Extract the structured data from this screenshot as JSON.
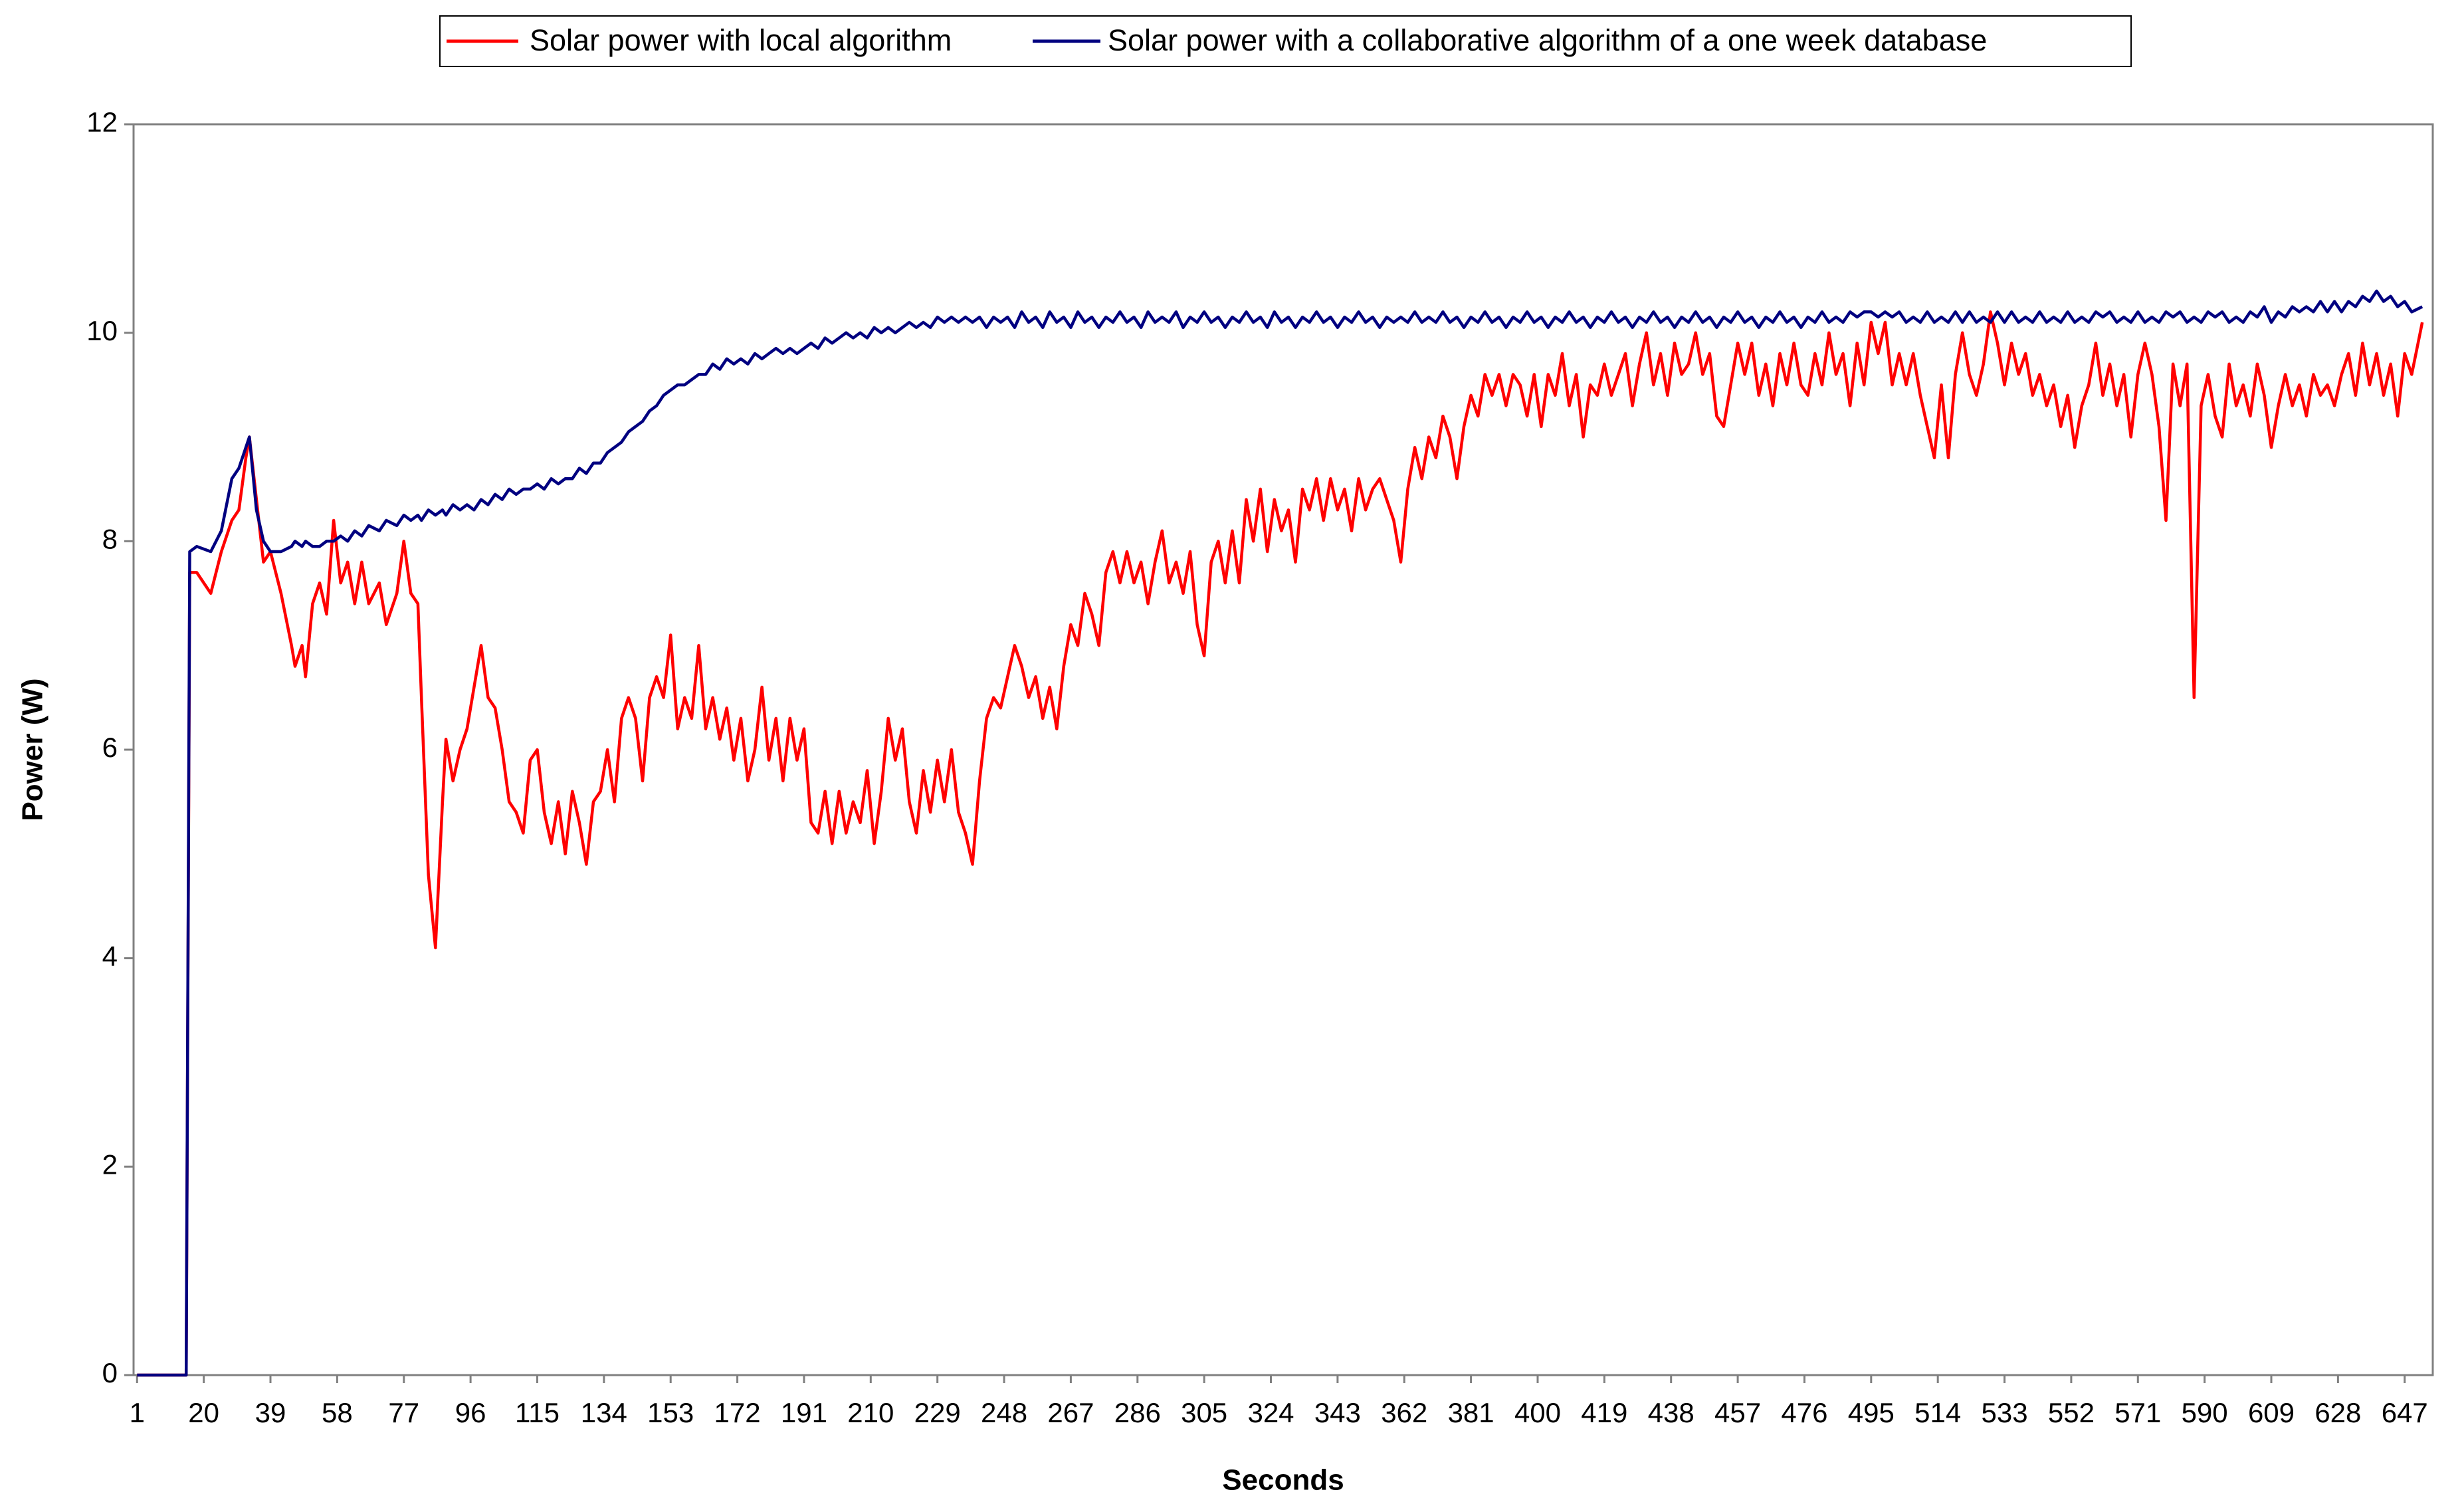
{
  "chart_data": {
    "type": "line",
    "x_label": "Seconds",
    "y_label": "Power (W)",
    "legend_position": "top",
    "xlim": [
      0,
      655
    ],
    "ylim": [
      0,
      12
    ],
    "xticks": [
      1,
      20,
      39,
      58,
      77,
      96,
      115,
      134,
      153,
      172,
      191,
      210,
      229,
      248,
      267,
      286,
      305,
      324,
      343,
      362,
      381,
      400,
      419,
      438,
      457,
      476,
      495,
      514,
      533,
      552,
      571,
      590,
      609,
      628,
      647
    ],
    "yticks": [
      0,
      2,
      4,
      6,
      8,
      10,
      12
    ],
    "x": [
      1,
      15,
      16,
      18,
      22,
      25,
      28,
      30,
      32,
      33,
      35,
      37,
      39,
      42,
      45,
      46,
      48,
      49,
      51,
      53,
      55,
      57,
      59,
      61,
      63,
      65,
      67,
      70,
      72,
      75,
      77,
      79,
      81,
      82,
      84,
      86,
      88,
      89,
      91,
      93,
      95,
      97,
      99,
      101,
      103,
      105,
      107,
      109,
      111,
      113,
      115,
      117,
      119,
      121,
      123,
      125,
      127,
      129,
      131,
      133,
      135,
      137,
      139,
      141,
      143,
      145,
      147,
      149,
      151,
      153,
      155,
      157,
      159,
      161,
      163,
      165,
      167,
      169,
      171,
      173,
      175,
      177,
      179,
      181,
      183,
      185,
      187,
      189,
      191,
      193,
      195,
      197,
      199,
      201,
      203,
      205,
      207,
      209,
      211,
      213,
      215,
      217,
      219,
      221,
      223,
      225,
      227,
      229,
      231,
      233,
      235,
      237,
      239,
      241,
      243,
      245,
      247,
      249,
      251,
      253,
      255,
      257,
      259,
      261,
      263,
      265,
      267,
      269,
      271,
      273,
      275,
      277,
      279,
      281,
      283,
      285,
      287,
      289,
      291,
      293,
      295,
      297,
      299,
      301,
      303,
      305,
      307,
      309,
      311,
      313,
      315,
      317,
      319,
      321,
      323,
      325,
      327,
      329,
      331,
      333,
      335,
      337,
      339,
      341,
      343,
      345,
      347,
      349,
      351,
      353,
      355,
      357,
      359,
      361,
      363,
      365,
      367,
      369,
      371,
      373,
      375,
      377,
      379,
      381,
      383,
      385,
      387,
      389,
      391,
      393,
      395,
      397,
      399,
      401,
      403,
      405,
      407,
      409,
      411,
      413,
      415,
      417,
      419,
      421,
      423,
      425,
      427,
      429,
      431,
      433,
      435,
      437,
      439,
      441,
      443,
      445,
      447,
      449,
      451,
      453,
      455,
      457,
      459,
      461,
      463,
      465,
      467,
      469,
      471,
      473,
      475,
      477,
      479,
      481,
      483,
      485,
      487,
      489,
      491,
      493,
      495,
      497,
      499,
      501,
      503,
      505,
      507,
      509,
      511,
      513,
      515,
      517,
      519,
      521,
      523,
      525,
      527,
      529,
      531,
      533,
      535,
      537,
      539,
      541,
      543,
      545,
      547,
      549,
      551,
      553,
      555,
      557,
      559,
      561,
      563,
      565,
      567,
      569,
      571,
      573,
      575,
      577,
      579,
      581,
      583,
      585,
      587,
      589,
      591,
      593,
      595,
      597,
      599,
      601,
      603,
      605,
      607,
      609,
      611,
      613,
      615,
      617,
      619,
      621,
      623,
      625,
      627,
      629,
      631,
      633,
      635,
      637,
      639,
      641,
      643,
      645,
      647,
      649,
      652
    ],
    "series": [
      {
        "name": "Solar power with local algorithm",
        "color": "#ff0000",
        "values": [
          0,
          0,
          7.7,
          7.7,
          7.5,
          7.9,
          8.2,
          8.3,
          8.8,
          9.0,
          8.4,
          7.8,
          7.9,
          7.5,
          7.0,
          6.8,
          7.0,
          6.7,
          7.4,
          7.6,
          7.3,
          8.2,
          7.6,
          7.8,
          7.4,
          7.8,
          7.4,
          7.6,
          7.2,
          7.5,
          8.0,
          7.5,
          7.4,
          6.5,
          4.8,
          4.1,
          5.5,
          6.1,
          5.7,
          6.0,
          6.2,
          6.6,
          7.0,
          6.5,
          6.4,
          6.0,
          5.5,
          5.4,
          5.2,
          5.9,
          6.0,
          5.4,
          5.1,
          5.5,
          5.0,
          5.6,
          5.3,
          4.9,
          5.5,
          5.6,
          6.0,
          5.5,
          6.3,
          6.5,
          6.3,
          5.7,
          6.5,
          6.7,
          6.5,
          7.1,
          6.2,
          6.5,
          6.3,
          7.0,
          6.2,
          6.5,
          6.1,
          6.4,
          5.9,
          6.3,
          5.7,
          6.0,
          6.6,
          5.9,
          6.3,
          5.7,
          6.3,
          5.9,
          6.2,
          5.3,
          5.2,
          5.6,
          5.1,
          5.6,
          5.2,
          5.5,
          5.3,
          5.8,
          5.1,
          5.6,
          6.3,
          5.9,
          6.2,
          5.5,
          5.2,
          5.8,
          5.4,
          5.9,
          5.5,
          6.0,
          5.4,
          5.2,
          4.9,
          5.7,
          6.3,
          6.5,
          6.4,
          6.7,
          7.0,
          6.8,
          6.5,
          6.7,
          6.3,
          6.6,
          6.2,
          6.8,
          7.2,
          7.0,
          7.5,
          7.3,
          7.0,
          7.7,
          7.9,
          7.6,
          7.9,
          7.6,
          7.8,
          7.4,
          7.8,
          8.1,
          7.6,
          7.8,
          7.5,
          7.9,
          7.2,
          6.9,
          7.8,
          8.0,
          7.6,
          8.1,
          7.6,
          8.4,
          8.0,
          8.5,
          7.9,
          8.4,
          8.1,
          8.3,
          7.8,
          8.5,
          8.3,
          8.6,
          8.2,
          8.6,
          8.3,
          8.5,
          8.1,
          8.6,
          8.3,
          8.5,
          8.6,
          8.4,
          8.2,
          7.8,
          8.5,
          8.9,
          8.6,
          9.0,
          8.8,
          9.2,
          9.0,
          8.6,
          9.1,
          9.4,
          9.2,
          9.6,
          9.4,
          9.6,
          9.3,
          9.6,
          9.5,
          9.2,
          9.6,
          9.1,
          9.6,
          9.4,
          9.8,
          9.3,
          9.6,
          9.0,
          9.5,
          9.4,
          9.7,
          9.4,
          9.6,
          9.8,
          9.3,
          9.7,
          10.0,
          9.5,
          9.8,
          9.4,
          9.9,
          9.6,
          9.7,
          10.0,
          9.6,
          9.8,
          9.2,
          9.1,
          9.5,
          9.9,
          9.6,
          9.9,
          9.4,
          9.7,
          9.3,
          9.8,
          9.5,
          9.9,
          9.5,
          9.4,
          9.8,
          9.5,
          10.0,
          9.6,
          9.8,
          9.3,
          9.9,
          9.5,
          10.1,
          9.8,
          10.1,
          9.5,
          9.8,
          9.5,
          9.8,
          9.4,
          9.1,
          8.8,
          9.5,
          8.8,
          9.6,
          10.0,
          9.6,
          9.4,
          9.7,
          10.2,
          9.9,
          9.5,
          9.9,
          9.6,
          9.8,
          9.4,
          9.6,
          9.3,
          9.5,
          9.1,
          9.4,
          8.9,
          9.3,
          9.5,
          9.9,
          9.4,
          9.7,
          9.3,
          9.6,
          9.0,
          9.6,
          9.9,
          9.6,
          9.1,
          8.2,
          9.7,
          9.3,
          9.7,
          6.5,
          9.3,
          9.6,
          9.2,
          9.0,
          9.7,
          9.3,
          9.5,
          9.2,
          9.7,
          9.4,
          8.9,
          9.3,
          9.6,
          9.3,
          9.5,
          9.2,
          9.6,
          9.4,
          9.5,
          9.3,
          9.6,
          9.8,
          9.4,
          9.9,
          9.5,
          9.8,
          9.4,
          9.7,
          9.2,
          9.8,
          9.6,
          10.1
        ]
      },
      {
        "name": "Solar power with a collaborative algorithm of a one week database",
        "color": "#000080",
        "values": [
          0,
          0,
          7.9,
          7.95,
          7.9,
          8.1,
          8.6,
          8.7,
          8.9,
          9.0,
          8.3,
          8.0,
          7.9,
          7.9,
          7.95,
          8.0,
          7.95,
          8.0,
          7.95,
          7.95,
          8.0,
          8.0,
          8.05,
          8.0,
          8.1,
          8.05,
          8.15,
          8.1,
          8.2,
          8.15,
          8.25,
          8.2,
          8.25,
          8.2,
          8.3,
          8.25,
          8.3,
          8.25,
          8.35,
          8.3,
          8.35,
          8.3,
          8.4,
          8.35,
          8.45,
          8.4,
          8.5,
          8.45,
          8.5,
          8.5,
          8.55,
          8.5,
          8.6,
          8.55,
          8.6,
          8.6,
          8.7,
          8.65,
          8.75,
          8.75,
          8.85,
          8.9,
          8.95,
          9.05,
          9.1,
          9.15,
          9.25,
          9.3,
          9.4,
          9.45,
          9.5,
          9.5,
          9.55,
          9.6,
          9.6,
          9.7,
          9.65,
          9.75,
          9.7,
          9.75,
          9.7,
          9.8,
          9.75,
          9.8,
          9.85,
          9.8,
          9.85,
          9.8,
          9.85,
          9.9,
          9.85,
          9.95,
          9.9,
          9.95,
          10.0,
          9.95,
          10.0,
          9.95,
          10.05,
          10.0,
          10.05,
          10.0,
          10.05,
          10.1,
          10.05,
          10.1,
          10.05,
          10.15,
          10.1,
          10.15,
          10.1,
          10.15,
          10.1,
          10.15,
          10.05,
          10.15,
          10.1,
          10.15,
          10.05,
          10.2,
          10.1,
          10.15,
          10.05,
          10.2,
          10.1,
          10.15,
          10.05,
          10.2,
          10.1,
          10.15,
          10.05,
          10.15,
          10.1,
          10.2,
          10.1,
          10.15,
          10.05,
          10.2,
          10.1,
          10.15,
          10.1,
          10.2,
          10.05,
          10.15,
          10.1,
          10.2,
          10.1,
          10.15,
          10.05,
          10.15,
          10.1,
          10.2,
          10.1,
          10.15,
          10.05,
          10.2,
          10.1,
          10.15,
          10.05,
          10.15,
          10.1,
          10.2,
          10.1,
          10.15,
          10.05,
          10.15,
          10.1,
          10.2,
          10.1,
          10.15,
          10.05,
          10.15,
          10.1,
          10.15,
          10.1,
          10.2,
          10.1,
          10.15,
          10.1,
          10.2,
          10.1,
          10.15,
          10.05,
          10.15,
          10.1,
          10.2,
          10.1,
          10.15,
          10.05,
          10.15,
          10.1,
          10.2,
          10.1,
          10.15,
          10.05,
          10.15,
          10.1,
          10.2,
          10.1,
          10.15,
          10.05,
          10.15,
          10.1,
          10.2,
          10.1,
          10.15,
          10.05,
          10.15,
          10.1,
          10.2,
          10.1,
          10.15,
          10.05,
          10.15,
          10.1,
          10.2,
          10.1,
          10.15,
          10.05,
          10.15,
          10.1,
          10.2,
          10.1,
          10.15,
          10.05,
          10.15,
          10.1,
          10.2,
          10.1,
          10.15,
          10.05,
          10.15,
          10.1,
          10.2,
          10.1,
          10.15,
          10.1,
          10.2,
          10.15,
          10.2,
          10.2,
          10.15,
          10.2,
          10.15,
          10.2,
          10.1,
          10.15,
          10.1,
          10.2,
          10.1,
          10.15,
          10.1,
          10.2,
          10.1,
          10.2,
          10.1,
          10.15,
          10.1,
          10.2,
          10.1,
          10.2,
          10.1,
          10.15,
          10.1,
          10.2,
          10.1,
          10.15,
          10.1,
          10.2,
          10.1,
          10.15,
          10.1,
          10.2,
          10.15,
          10.2,
          10.1,
          10.15,
          10.1,
          10.2,
          10.1,
          10.15,
          10.1,
          10.2,
          10.15,
          10.2,
          10.1,
          10.15,
          10.1,
          10.2,
          10.15,
          10.2,
          10.1,
          10.15,
          10.1,
          10.2,
          10.15,
          10.25,
          10.1,
          10.2,
          10.15,
          10.25,
          10.2,
          10.25,
          10.2,
          10.3,
          10.2,
          10.3,
          10.2,
          10.3,
          10.25,
          10.35,
          10.3,
          10.4,
          10.3,
          10.35,
          10.25,
          10.3,
          10.2,
          10.25
        ]
      }
    ]
  }
}
